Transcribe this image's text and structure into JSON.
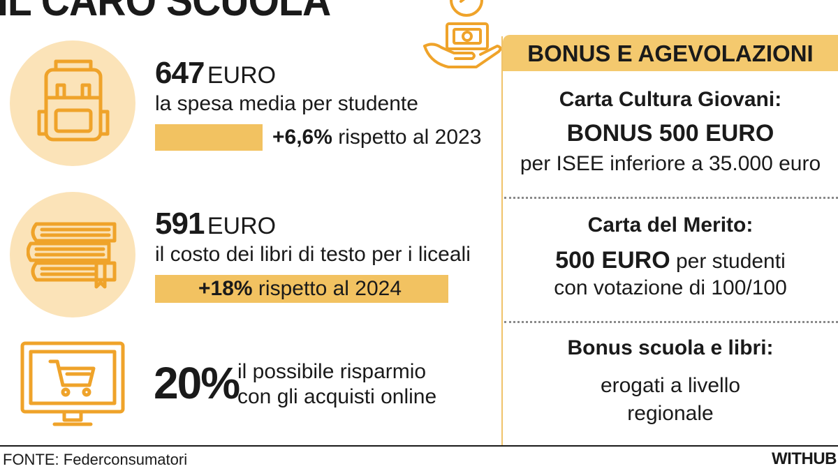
{
  "header": {
    "title": "IL CARO SCUOLA"
  },
  "stats": [
    {
      "value": "647",
      "unit": "EURO",
      "description": "la spesa media per studente",
      "change_bold": "+6,6%",
      "change_rest": " rispetto al 2023"
    },
    {
      "value": "591",
      "unit": "EURO",
      "description": "il costo dei libri di testo per i liceali",
      "change_bold": "+18%",
      "change_rest": " rispetto al 2024"
    },
    {
      "value": "20%",
      "line1": "il possibile risparmio",
      "line2": "con gli acquisti online"
    }
  ],
  "panel": {
    "heading": "BONUS E AGEVOLAZIONI",
    "items": [
      {
        "title": "Carta Cultura Giovani:",
        "line1": "BONUS 500 EURO",
        "line2": "per ISEE inferiore a 35.000 euro"
      },
      {
        "title": "Carta del Merito:",
        "line1_bold": "500 EURO",
        "line1_rest": " per studenti",
        "line2": "con votazione di 100/100"
      },
      {
        "title": "Bonus scuola e libri:",
        "line1": "erogati a livello",
        "line2": "regionale"
      }
    ]
  },
  "footer": {
    "source": "FONTE: Federconsumatori",
    "brand": "WITHUB"
  },
  "icons": [
    "backpack-icon",
    "books-icon",
    "online-cart-monitor-icon",
    "hand-money-percent-icon"
  ],
  "colors": {
    "accent": "#f4c96e",
    "circle": "#fbe3b8",
    "icon_stroke": "#efa32a",
    "text": "#1a1a1a"
  }
}
